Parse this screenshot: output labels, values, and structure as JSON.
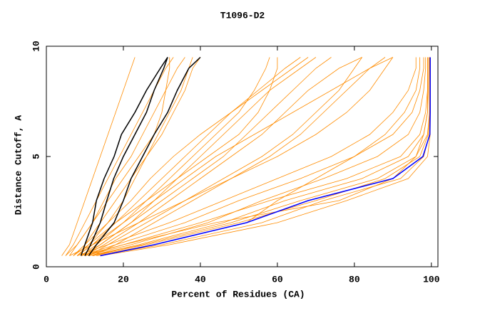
{
  "chart_data": {
    "type": "line",
    "title": "T1096-D2",
    "x_label": "Percent of Residues (CA)",
    "y_label": "Distance Cutoff, A",
    "xlim": [
      0,
      101.7
    ],
    "xticks": [
      0,
      20,
      40,
      60,
      80,
      100
    ],
    "ylim": [
      0,
      10
    ],
    "yticks": [
      0,
      5,
      10
    ],
    "y": [
      0.5,
      1,
      2,
      3,
      4,
      5,
      6,
      7,
      8,
      9,
      9.5
    ],
    "series": [
      {
        "color": "#ff8c00",
        "x": [
          4,
          6,
          8,
          10,
          12,
          14,
          16,
          18,
          20,
          22,
          23
        ]
      },
      {
        "color": "#ff8c00",
        "x": [
          5,
          7,
          10,
          13,
          16,
          19,
          22,
          25,
          28,
          31,
          33
        ]
      },
      {
        "color": "#ff8c00",
        "x": [
          6,
          8,
          12,
          15,
          18,
          22,
          25,
          28,
          31,
          34,
          36
        ]
      },
      {
        "color": "#ff8c00",
        "x": [
          7,
          10,
          14,
          18,
          22,
          26,
          29,
          32,
          35,
          37,
          38
        ]
      },
      {
        "color": "#ff8c00",
        "x": [
          5,
          8,
          12,
          16,
          20,
          24,
          28,
          30,
          31,
          32,
          32
        ]
      },
      {
        "color": "#ff8c00",
        "x": [
          8,
          11,
          16,
          20,
          23,
          26,
          30,
          33,
          36,
          38,
          40
        ]
      },
      {
        "color": "#ff8c00",
        "x": [
          8,
          12,
          18,
          24,
          30,
          36,
          42,
          48,
          55,
          62,
          66
        ]
      },
      {
        "color": "#ff8c00",
        "x": [
          9,
          14,
          22,
          30,
          38,
          46,
          52,
          58,
          64,
          70,
          74
        ]
      },
      {
        "color": "#ff8c00",
        "x": [
          10,
          15,
          24,
          32,
          40,
          48,
          56,
          62,
          68,
          76,
          82
        ]
      },
      {
        "color": "#ff8c00",
        "x": [
          7,
          11,
          18,
          26,
          34,
          42,
          50,
          55,
          58,
          60,
          60
        ]
      },
      {
        "color": "#ff8c00",
        "x": [
          9,
          13,
          20,
          28,
          36,
          44,
          54,
          64,
          74,
          84,
          90
        ]
      },
      {
        "color": "#ff8c00",
        "x": [
          10,
          14,
          22,
          28,
          34,
          40,
          46,
          52,
          58,
          66,
          70
        ]
      },
      {
        "color": "#ff8c00",
        "x": [
          12,
          18,
          28,
          38,
          48,
          58,
          66,
          72,
          78,
          84,
          88
        ]
      },
      {
        "color": "#ff8c00",
        "x": [
          8,
          12,
          20,
          26,
          32,
          38,
          44,
          50,
          54,
          57,
          58
        ]
      },
      {
        "color": "#ff8c00",
        "x": [
          11,
          16,
          26,
          36,
          46,
          56,
          64,
          70,
          76,
          80,
          82
        ]
      },
      {
        "color": "#ff8c00",
        "x": [
          7,
          10,
          16,
          22,
          27,
          33,
          40,
          48,
          56,
          64,
          68
        ]
      },
      {
        "color": "#ff8c00",
        "x": [
          12,
          25,
          48,
          66,
          86,
          96,
          99,
          99.5,
          99.5,
          99.5,
          99.5
        ]
      },
      {
        "color": "#ff8c00",
        "x": [
          13,
          30,
          56,
          72,
          92,
          98,
          99.5,
          99.6,
          99.6,
          99.6,
          99.6
        ]
      },
      {
        "color": "#ff8c00",
        "x": [
          11,
          24,
          46,
          62,
          82,
          94,
          98,
          99,
          99.2,
          99.3,
          99.3
        ]
      },
      {
        "color": "#ff8c00",
        "x": [
          10,
          20,
          40,
          58,
          78,
          92,
          97,
          98.5,
          99,
          99,
          99
        ]
      },
      {
        "color": "#ff8c00",
        "x": [
          14,
          32,
          60,
          78,
          94,
          99,
          99.7,
          99.7,
          99.7,
          99.7,
          99.7
        ]
      },
      {
        "color": "#ff8c00",
        "x": [
          10,
          22,
          42,
          56,
          72,
          86,
          94,
          97,
          98,
          98.5,
          98.5
        ]
      },
      {
        "color": "#ff8c00",
        "x": [
          9,
          18,
          36,
          50,
          66,
          80,
          90,
          95,
          97,
          98,
          98
        ]
      },
      {
        "color": "#ff8c00",
        "x": [
          11,
          26,
          50,
          70,
          88,
          97,
          99.2,
          99.5,
          99.6,
          99.6,
          99.6
        ]
      },
      {
        "color": "#ff8c00",
        "x": [
          8,
          16,
          32,
          46,
          60,
          74,
          84,
          90,
          94,
          96,
          96
        ]
      },
      {
        "color": "#ff8c00",
        "x": [
          12,
          28,
          52,
          60,
          70,
          80,
          88,
          93,
          96,
          97,
          97
        ]
      },
      {
        "color": "#ff8c00",
        "x": [
          9,
          20,
          44,
          76,
          90,
          96,
          98,
          99,
          99,
          99,
          99
        ]
      },
      {
        "color": "#ff8c00",
        "x": [
          6,
          12,
          24,
          36,
          48,
          60,
          70,
          78,
          84,
          88,
          90
        ]
      },
      {
        "color": "#000000",
        "x": [
          9,
          10,
          12,
          13,
          15,
          17.6,
          19.5,
          23,
          26,
          29.6,
          31.5
        ]
      },
      {
        "color": "#000000",
        "x": [
          10,
          11.5,
          14,
          15.7,
          17.5,
          20,
          23,
          26,
          28,
          30.5,
          31.5
        ]
      },
      {
        "color": "#000000",
        "x": [
          11,
          13,
          17.6,
          20,
          22,
          25,
          28,
          31.5,
          34,
          37,
          40
        ]
      },
      {
        "color": "#0000ff",
        "x": [
          14,
          28,
          52,
          68,
          90,
          97.8,
          99.6,
          99.7,
          99.7,
          99.7,
          99.7
        ]
      }
    ]
  }
}
